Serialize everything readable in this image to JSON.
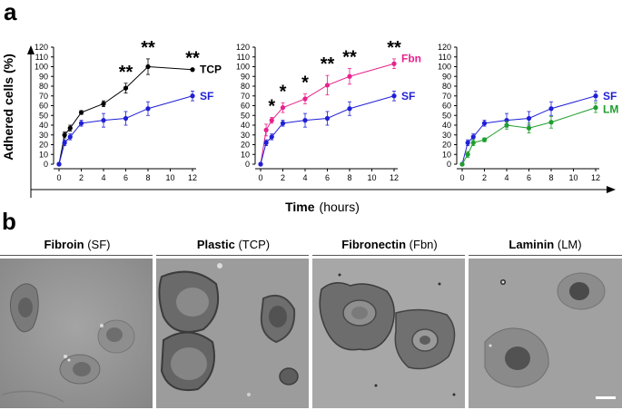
{
  "figure": {
    "panel_a_letter": "a",
    "panel_b_letter": "b",
    "y_axis_label": "Adhered cells (%)",
    "x_axis_label_bold": "Time",
    "x_axis_label_unit": "(hours)"
  },
  "colors": {
    "tcp": "#000000",
    "sf": "#1f1fd6",
    "fbn": "#e8218c",
    "lm": "#1e9e2e",
    "axis": "#000000"
  },
  "chart_data": [
    {
      "type": "line",
      "title": "",
      "xlabel": "Time (hours)",
      "ylabel": "Adhered cells (%)",
      "xlim": [
        0,
        12
      ],
      "ylim": [
        0,
        120
      ],
      "x_ticks": [
        0,
        2,
        4,
        6,
        8,
        10,
        12
      ],
      "y_ticks": [
        0,
        10,
        20,
        30,
        40,
        50,
        60,
        70,
        80,
        90,
        100,
        110,
        120
      ],
      "series": [
        {
          "name": "TCP",
          "color": "#000000",
          "x": [
            0,
            0.5,
            1,
            2,
            4,
            6,
            8,
            12
          ],
          "y": [
            0,
            30,
            37,
            53,
            62,
            78,
            100,
            97
          ],
          "err": [
            0,
            3,
            3,
            2,
            3,
            5,
            8,
            0
          ]
        },
        {
          "name": "SF",
          "color": "#1f1fd6",
          "x": [
            0,
            0.5,
            1,
            2,
            4,
            6,
            8,
            12
          ],
          "y": [
            0,
            22,
            28,
            42,
            45,
            47,
            57,
            70
          ],
          "err": [
            0,
            3,
            3,
            3,
            7,
            7,
            7,
            5
          ]
        }
      ],
      "annotations": [
        {
          "x": 6,
          "y": 78,
          "text": "**"
        },
        {
          "x": 8,
          "y": 100,
          "text": "**"
        },
        {
          "x": 12,
          "y": 97,
          "text": "**"
        }
      ]
    },
    {
      "type": "line",
      "title": "",
      "xlabel": "Time (hours)",
      "ylabel": "",
      "xlim": [
        0,
        12
      ],
      "ylim": [
        0,
        120
      ],
      "x_ticks": [
        0,
        2,
        4,
        6,
        8,
        10,
        12
      ],
      "y_ticks": [
        0,
        10,
        20,
        30,
        40,
        50,
        60,
        70,
        80,
        90,
        100,
        110,
        120
      ],
      "series": [
        {
          "name": "Fbn",
          "color": "#e8218c",
          "x": [
            0,
            0.5,
            1,
            2,
            4,
            6,
            8,
            12
          ],
          "y": [
            0,
            35,
            45,
            58,
            67,
            81,
            90,
            103
          ],
          "err": [
            0,
            6,
            3,
            5,
            5,
            10,
            8,
            5
          ]
        },
        {
          "name": "SF",
          "color": "#1f1fd6",
          "x": [
            0,
            0.5,
            1,
            2,
            4,
            6,
            8,
            12
          ],
          "y": [
            0,
            22,
            28,
            42,
            45,
            47,
            57,
            70
          ],
          "err": [
            0,
            3,
            3,
            3,
            7,
            7,
            7,
            5
          ]
        }
      ],
      "annotations": [
        {
          "x": 1,
          "y": 45,
          "text": "*"
        },
        {
          "x": 2,
          "y": 58,
          "text": "*"
        },
        {
          "x": 4,
          "y": 67,
          "text": "*"
        },
        {
          "x": 6,
          "y": 81,
          "text": "**"
        },
        {
          "x": 8,
          "y": 90,
          "text": "**"
        },
        {
          "x": 12,
          "y": 103,
          "text": "**"
        }
      ]
    },
    {
      "type": "line",
      "title": "",
      "xlabel": "Time (hours)",
      "ylabel": "",
      "xlim": [
        0,
        12
      ],
      "ylim": [
        0,
        120
      ],
      "x_ticks": [
        0,
        2,
        4,
        6,
        8,
        10,
        12
      ],
      "y_ticks": [
        0,
        10,
        20,
        30,
        40,
        50,
        60,
        70,
        80,
        90,
        100,
        110,
        120
      ],
      "series": [
        {
          "name": "SF",
          "color": "#1f1fd6",
          "x": [
            0,
            0.5,
            1,
            2,
            4,
            6,
            8,
            12
          ],
          "y": [
            0,
            22,
            28,
            42,
            45,
            47,
            57,
            70
          ],
          "err": [
            0,
            3,
            3,
            3,
            7,
            7,
            7,
            5
          ]
        },
        {
          "name": "LM",
          "color": "#1e9e2e",
          "x": [
            0,
            0.5,
            1,
            2,
            4,
            6,
            8,
            12
          ],
          "y": [
            0,
            10,
            22,
            25,
            40,
            37,
            43,
            58
          ],
          "err": [
            0,
            3,
            3,
            2,
            4,
            5,
            6,
            5
          ]
        }
      ],
      "annotations": []
    }
  ],
  "micrographs": [
    {
      "title_bold": "Fibroin",
      "title_rest": "(SF)"
    },
    {
      "title_bold": "Plastic",
      "title_rest": "(TCP)"
    },
    {
      "title_bold": "Fibronectin",
      "title_rest": "(Fbn)"
    },
    {
      "title_bold": "Laminin",
      "title_rest": "(LM)"
    }
  ]
}
